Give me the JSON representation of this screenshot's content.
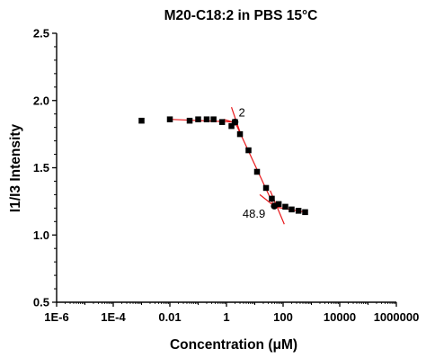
{
  "chart_data": {
    "type": "scatter",
    "title": "M20-C18:2 in PBS 15°C",
    "xlabel": "Concentration (μM)",
    "ylabel": "I1/I3 Intensity",
    "xscale": "log",
    "xlim": [
      1e-06,
      1000000
    ],
    "ylim": [
      0.5,
      2.5
    ],
    "x_tick_values": [
      1e-06,
      0.0001,
      0.01,
      1,
      100,
      10000,
      1000000
    ],
    "x_tick_labels": [
      "1E-6",
      "1E-4",
      "0.01",
      "1",
      "100",
      "10000",
      "1000000"
    ],
    "y_tick_values": [
      0.5,
      1.0,
      1.5,
      2.0,
      2.5
    ],
    "y_tick_labels": [
      "0.5",
      "1.0",
      "1.5",
      "2.0",
      "2.5"
    ],
    "grid": false,
    "marker": "square",
    "marker_color": "#000000",
    "fit_color": "#e8191c",
    "points": [
      {
        "x": 0.001,
        "y": 1.85
      },
      {
        "x": 0.01,
        "y": 1.86
      },
      {
        "x": 0.05,
        "y": 1.85
      },
      {
        "x": 0.1,
        "y": 1.86
      },
      {
        "x": 0.2,
        "y": 1.86
      },
      {
        "x": 0.35,
        "y": 1.86
      },
      {
        "x": 0.7,
        "y": 1.84
      },
      {
        "x": 1.5,
        "y": 1.81
      },
      {
        "x": 2,
        "y": 1.84
      },
      {
        "x": 3,
        "y": 1.75
      },
      {
        "x": 6,
        "y": 1.63
      },
      {
        "x": 12,
        "y": 1.47
      },
      {
        "x": 25,
        "y": 1.35
      },
      {
        "x": 40,
        "y": 1.27
      },
      {
        "x": 70,
        "y": 1.23
      },
      {
        "x": 120,
        "y": 1.21
      },
      {
        "x": 200,
        "y": 1.19
      },
      {
        "x": 350,
        "y": 1.18
      },
      {
        "x": 600,
        "y": 1.17
      }
    ],
    "fit_lines": [
      {
        "x": [
          0.01,
          2
        ],
        "y": [
          1.86,
          1.84
        ]
      },
      {
        "x": [
          2,
          48.9
        ],
        "y": [
          1.84,
          1.21
        ]
      },
      {
        "x": [
          48.9,
          600
        ],
        "y": [
          1.21,
          1.17
        ]
      }
    ],
    "cross_lines": [
      {
        "x": [
          1.5,
          3.3
        ],
        "y": [
          1.95,
          1.74
        ]
      },
      {
        "x": [
          2,
          0.8
        ],
        "y": [
          1.835,
          1.86
        ]
      },
      {
        "x": [
          35,
          110
        ],
        "y": [
          1.33,
          1.08
        ]
      },
      {
        "x": [
          15,
          48.9
        ],
        "y": [
          1.3,
          1.215
        ]
      }
    ],
    "annotations": [
      {
        "text": "2",
        "x": 2,
        "y": 1.84
      },
      {
        "text": "48.9",
        "x": 48.9,
        "y": 1.215
      }
    ]
  }
}
